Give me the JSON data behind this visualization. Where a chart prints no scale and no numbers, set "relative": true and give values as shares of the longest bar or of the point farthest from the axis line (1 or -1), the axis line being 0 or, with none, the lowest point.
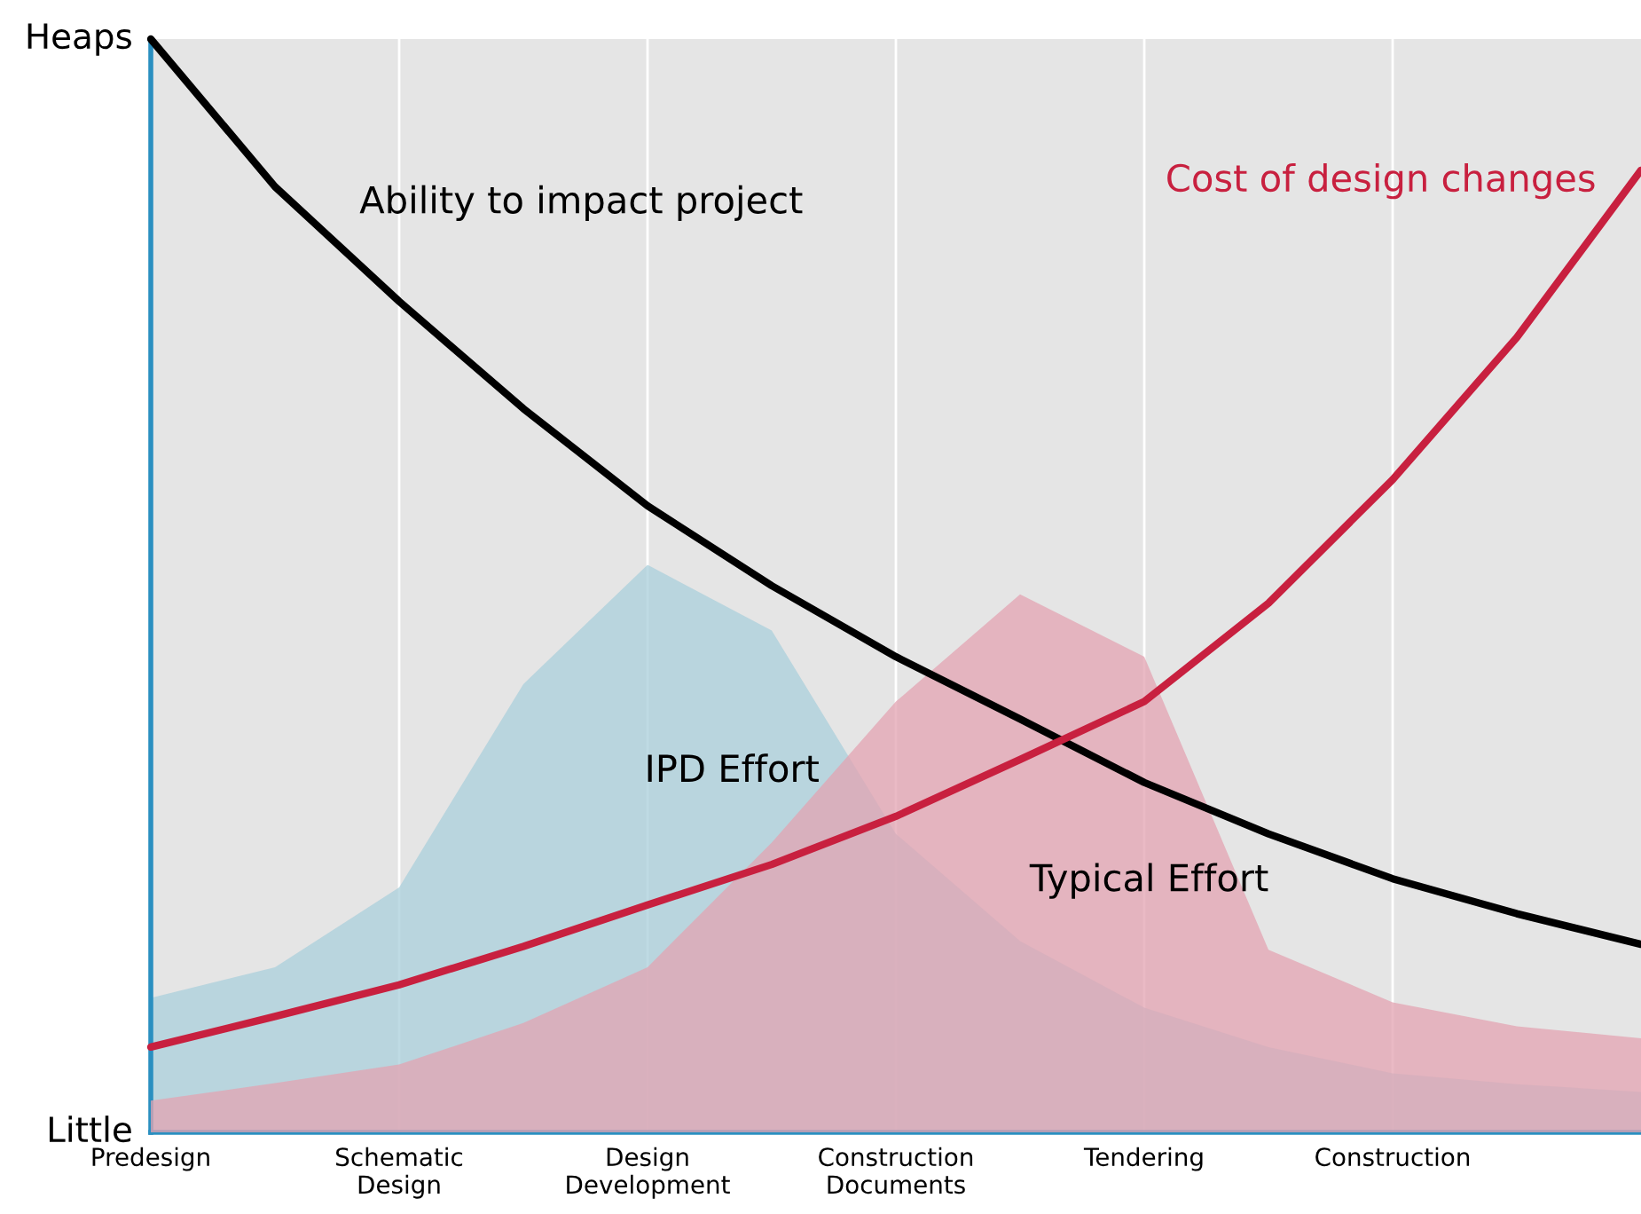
{
  "chart_data": {
    "type": "line",
    "relative": true,
    "categories": [
      "Predesign",
      null,
      "Schematic\nDesign",
      null,
      "Design\nDevelopment",
      null,
      "Construction\nDocuments",
      null,
      "Tendering",
      null,
      "Construction",
      null,
      null
    ],
    "annotations": [
      "Heaps",
      "Little"
    ],
    "grid": "x",
    "legend": false,
    "series": [
      {
        "name": "IPD Effort",
        "type": "area",
        "color": "#a9cfdb",
        "values": [
          0.123,
          0.151,
          0.224,
          0.41,
          0.519,
          0.459,
          0.273,
          0.175,
          0.114,
          0.078,
          0.054,
          0.044,
          0.037
        ]
      },
      {
        "name": "Typical Effort",
        "type": "area",
        "color": "#e3a3b1",
        "values": [
          0.029,
          0.045,
          0.062,
          0.1,
          0.151,
          0.265,
          0.394,
          0.492,
          0.435,
          0.167,
          0.119,
          0.097,
          0.086
        ]
      },
      {
        "name": "Ability to impact project",
        "color": "#000000",
        "values": [
          1.0,
          0.865,
          0.76,
          0.662,
          0.573,
          0.5,
          0.435,
          0.378,
          0.32,
          0.273,
          0.232,
          0.2,
          0.172
        ]
      },
      {
        "name": "Cost of design changes",
        "color": "#c8203f",
        "values": [
          0.078,
          0.106,
          0.135,
          0.17,
          0.208,
          0.245,
          0.289,
          0.341,
          0.394,
          0.484,
          0.597,
          0.727,
          0.88
        ]
      }
    ]
  }
}
